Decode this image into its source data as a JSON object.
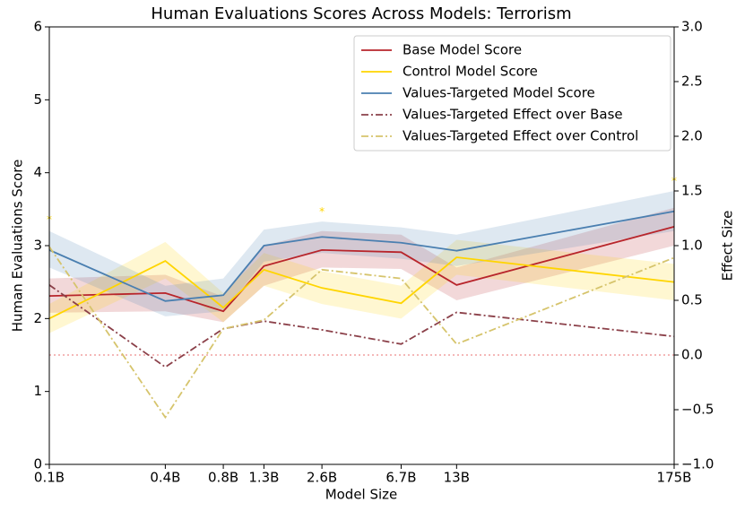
{
  "chart_data": {
    "type": "line",
    "title": "Human Evaluations Scores Across Models: Terrorism",
    "xlabel": "Model Size",
    "ylabel": "Human Evaluations Score",
    "y2label": "Effect Size",
    "x": [
      0.1,
      0.4,
      0.8,
      1.3,
      2.6,
      6.7,
      13,
      175
    ],
    "xscale": "log",
    "xlim": [
      0.1,
      175
    ],
    "xticks": [
      {
        "value": 0.1,
        "label": "0.1B"
      },
      {
        "value": 0.4,
        "label": "0.4B"
      },
      {
        "value": 0.8,
        "label": "0.8B"
      },
      {
        "value": 1.3,
        "label": "1.3B"
      },
      {
        "value": 2.6,
        "label": "2.6B"
      },
      {
        "value": 6.7,
        "label": "6.7B"
      },
      {
        "value": 13,
        "label": "13B"
      },
      {
        "value": 175,
        "label": "175B"
      }
    ],
    "ylim": [
      0,
      6
    ],
    "yticks": [
      0,
      1,
      2,
      3,
      4,
      5,
      6
    ],
    "y2lim": [
      -1,
      3
    ],
    "y2ticks": [
      {
        "value": -1,
        "label": "−1.0"
      },
      {
        "value": -0.5,
        "label": "−0.5"
      },
      {
        "value": 0,
        "label": "0.0"
      },
      {
        "value": 0.5,
        "label": "0.5"
      },
      {
        "value": 1,
        "label": "1.0"
      },
      {
        "value": 1.5,
        "label": "1.5"
      },
      {
        "value": 2,
        "label": "2.0"
      },
      {
        "value": 2.5,
        "label": "2.5"
      },
      {
        "value": 3,
        "label": "3.0"
      }
    ],
    "y2_reference": 0,
    "legend": "upper right",
    "series": [
      {
        "name": "Base Model Score",
        "color": "#b8252b",
        "style": "solid",
        "values": [
          2.31,
          2.35,
          2.1,
          2.72,
          2.94,
          2.91,
          2.46,
          3.26
        ],
        "lower": [
          2.08,
          2.1,
          1.95,
          2.45,
          2.7,
          2.68,
          2.25,
          3.0
        ],
        "upper": [
          2.55,
          2.6,
          2.3,
          3.0,
          3.2,
          3.15,
          2.7,
          3.52
        ]
      },
      {
        "name": "Control Model Score",
        "color": "#ffd500",
        "style": "solid",
        "values": [
          2.0,
          2.79,
          2.15,
          2.67,
          2.42,
          2.21,
          2.84,
          2.5
        ],
        "lower": [
          1.8,
          2.55,
          1.95,
          2.45,
          2.2,
          2.0,
          2.6,
          2.25
        ],
        "upper": [
          2.2,
          3.05,
          2.35,
          2.9,
          2.65,
          2.45,
          3.08,
          2.75
        ]
      },
      {
        "name": "Values-Targeted Model Score",
        "color": "#4a7fb0",
        "style": "solid",
        "values": [
          2.94,
          2.24,
          2.32,
          3.0,
          3.12,
          3.04,
          2.93,
          3.47
        ],
        "lower": [
          2.7,
          2.03,
          2.1,
          2.78,
          2.9,
          2.82,
          2.72,
          3.2
        ],
        "upper": [
          3.2,
          2.45,
          2.55,
          3.22,
          3.33,
          3.25,
          3.15,
          3.75
        ]
      },
      {
        "name": "Values-Targeted Effect over Base",
        "color": "#8b4049",
        "style": "dashdot",
        "axis": "y2",
        "values": [
          0.64,
          -0.11,
          0.24,
          0.31,
          0.23,
          0.1,
          0.39,
          0.17
        ]
      },
      {
        "name": "Values-Targeted Effect over Control",
        "color": "#d6c46c",
        "style": "dashdot",
        "axis": "y2",
        "values": [
          0.99,
          -0.57,
          0.24,
          0.32,
          0.78,
          0.7,
          0.1,
          0.89
        ]
      }
    ],
    "annotations": [
      {
        "text": "*",
        "x": 0.1,
        "y2": 1.26
      },
      {
        "text": "*",
        "x": 2.6,
        "y2": 1.33
      },
      {
        "text": "*",
        "x": 175,
        "y2": 1.61
      }
    ]
  }
}
